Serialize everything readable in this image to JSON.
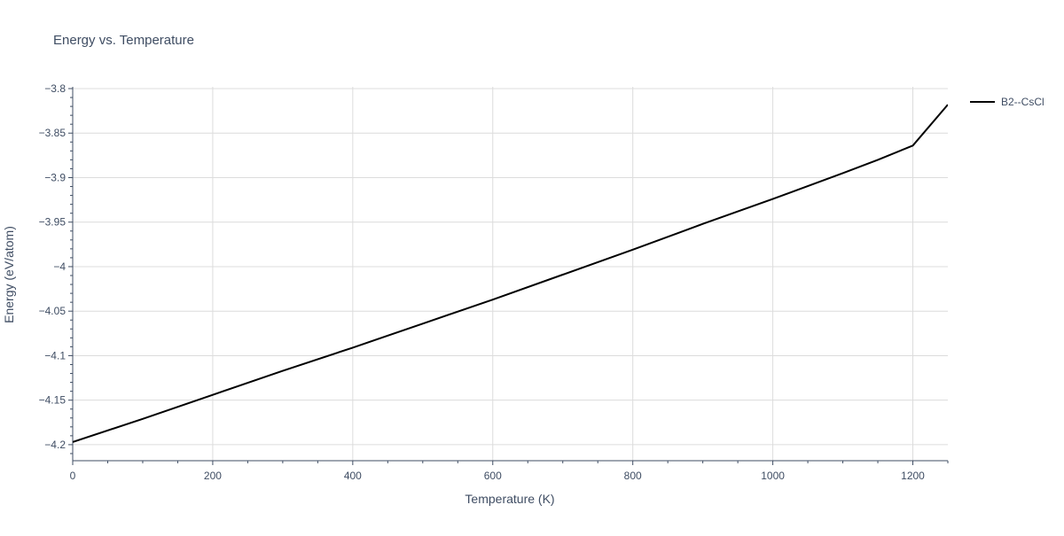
{
  "chart_data": {
    "type": "line",
    "title": "Energy vs. Temperature",
    "xlabel": "Temperature (K)",
    "ylabel": "Energy (eV/atom)",
    "xlim": [
      0,
      1250
    ],
    "ylim": [
      -4.218,
      -3.798
    ],
    "x_ticks": [
      0,
      200,
      400,
      600,
      800,
      1000,
      1200
    ],
    "x_tick_labels": [
      "0",
      "200",
      "400",
      "600",
      "800",
      "1000",
      "1200"
    ],
    "y_ticks": [
      -3.8,
      -3.85,
      -3.9,
      -3.95,
      -4.0,
      -4.05,
      -4.1,
      -4.15,
      -4.2
    ],
    "y_tick_labels": [
      "−3.8",
      "−3.85",
      "−3.9",
      "−3.95",
      "−4",
      "−4.05",
      "−4.1",
      "−4.15",
      "−4.2"
    ],
    "x_minor_step": 50,
    "y_minor_step": 0.01,
    "grid": true,
    "legend_position": "top-right",
    "series": [
      {
        "name": "B2--CsCl",
        "color": "#000000",
        "x": [
          0,
          100,
          200,
          300,
          400,
          500,
          600,
          700,
          800,
          900,
          1000,
          1100,
          1150,
          1200,
          1250
        ],
        "y": [
          -4.197,
          -4.171,
          -4.144,
          -4.117,
          -4.091,
          -4.064,
          -4.037,
          -4.009,
          -3.981,
          -3.952,
          -3.924,
          -3.895,
          -3.88,
          -3.864,
          -3.818
        ]
      }
    ]
  }
}
